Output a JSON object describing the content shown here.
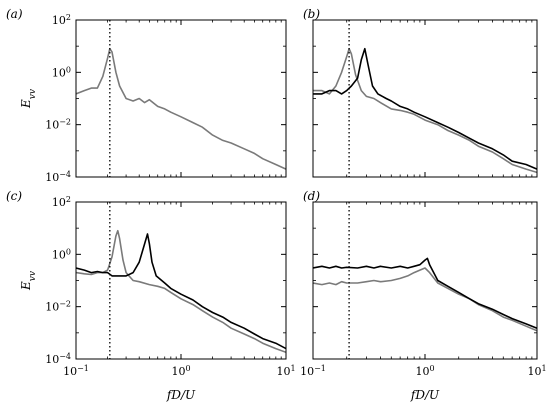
{
  "figure": {
    "xlabel": "fD/U",
    "ylabel": "E_vv",
    "colors": {
      "dark": "#000000",
      "gray": "#7a7a7a",
      "dotted": "#000000"
    }
  },
  "chart_data": [
    {
      "panel": "(a)",
      "type": "line",
      "x_scale": "log",
      "y_scale": "log",
      "xlim": [
        0.1,
        10
      ],
      "ylim": [
        0.0001,
        100
      ],
      "x_tick_labels_visible": false,
      "y_tick_labels_visible": true,
      "ylabel": "E_vv",
      "xlabel": "",
      "vline_x": 0.21,
      "series": [
        {
          "color": "gray",
          "points": [
            [
              0.1,
              0.15
            ],
            [
              0.12,
              0.2
            ],
            [
              0.14,
              0.25
            ],
            [
              0.16,
              0.25
            ],
            [
              0.18,
              0.7
            ],
            [
              0.2,
              3.5
            ],
            [
              0.21,
              8
            ],
            [
              0.22,
              6
            ],
            [
              0.24,
              1.0
            ],
            [
              0.26,
              0.3
            ],
            [
              0.3,
              0.1
            ],
            [
              0.35,
              0.08
            ],
            [
              0.4,
              0.1
            ],
            [
              0.45,
              0.07
            ],
            [
              0.5,
              0.09
            ],
            [
              0.6,
              0.05
            ],
            [
              0.7,
              0.04
            ],
            [
              0.8,
              0.03
            ],
            [
              1.0,
              0.02
            ],
            [
              1.3,
              0.012
            ],
            [
              1.6,
              0.008
            ],
            [
              2.0,
              0.004
            ],
            [
              2.5,
              0.0025
            ],
            [
              3.0,
              0.002
            ],
            [
              4.0,
              0.0012
            ],
            [
              5.0,
              0.0008
            ],
            [
              6.0,
              0.0005
            ],
            [
              8.0,
              0.0003
            ],
            [
              10.0,
              0.0002
            ]
          ]
        }
      ]
    },
    {
      "panel": "(b)",
      "type": "line",
      "x_scale": "log",
      "y_scale": "log",
      "xlim": [
        0.1,
        10
      ],
      "ylim": [
        0.0001,
        100
      ],
      "x_tick_labels_visible": false,
      "y_tick_labels_visible": false,
      "ylabel": "",
      "xlabel": "",
      "vline_x": 0.21,
      "series": [
        {
          "color": "gray",
          "points": [
            [
              0.1,
              0.2
            ],
            [
              0.12,
              0.2
            ],
            [
              0.14,
              0.15
            ],
            [
              0.16,
              0.3
            ],
            [
              0.18,
              1.0
            ],
            [
              0.2,
              4.0
            ],
            [
              0.21,
              8
            ],
            [
              0.22,
              5
            ],
            [
              0.24,
              0.8
            ],
            [
              0.27,
              0.2
            ],
            [
              0.3,
              0.12
            ],
            [
              0.35,
              0.1
            ],
            [
              0.4,
              0.07
            ],
            [
              0.5,
              0.04
            ],
            [
              0.6,
              0.035
            ],
            [
              0.7,
              0.03
            ],
            [
              0.8,
              0.025
            ],
            [
              1.0,
              0.015
            ],
            [
              1.3,
              0.01
            ],
            [
              1.6,
              0.006
            ],
            [
              2.0,
              0.004
            ],
            [
              2.5,
              0.0025
            ],
            [
              3.0,
              0.0015
            ],
            [
              4.0,
              0.0009
            ],
            [
              5.0,
              0.0005
            ],
            [
              6.0,
              0.0003
            ],
            [
              8.0,
              0.0002
            ],
            [
              10.0,
              0.00015
            ]
          ]
        },
        {
          "color": "dark",
          "points": [
            [
              0.1,
              0.15
            ],
            [
              0.12,
              0.15
            ],
            [
              0.14,
              0.2
            ],
            [
              0.16,
              0.2
            ],
            [
              0.18,
              0.15
            ],
            [
              0.2,
              0.2
            ],
            [
              0.22,
              0.3
            ],
            [
              0.25,
              0.6
            ],
            [
              0.27,
              3
            ],
            [
              0.29,
              8
            ],
            [
              0.31,
              2
            ],
            [
              0.34,
              0.3
            ],
            [
              0.38,
              0.15
            ],
            [
              0.45,
              0.1
            ],
            [
              0.5,
              0.08
            ],
            [
              0.6,
              0.05
            ],
            [
              0.7,
              0.04
            ],
            [
              0.8,
              0.03
            ],
            [
              1.0,
              0.02
            ],
            [
              1.3,
              0.012
            ],
            [
              1.6,
              0.008
            ],
            [
              2.0,
              0.005
            ],
            [
              2.5,
              0.003
            ],
            [
              3.0,
              0.002
            ],
            [
              4.0,
              0.0012
            ],
            [
              5.0,
              0.0007
            ],
            [
              6.0,
              0.0004
            ],
            [
              8.0,
              0.0003
            ],
            [
              10.0,
              0.0002
            ]
          ]
        }
      ]
    },
    {
      "panel": "(c)",
      "type": "line",
      "x_scale": "log",
      "y_scale": "log",
      "xlim": [
        0.1,
        10
      ],
      "ylim": [
        0.0001,
        100
      ],
      "x_tick_labels_visible": true,
      "y_tick_labels_visible": true,
      "ylabel": "E_vv",
      "xlabel": "fD/U",
      "vline_x": 0.21,
      "series": [
        {
          "color": "gray",
          "points": [
            [
              0.1,
              0.2
            ],
            [
              0.12,
              0.18
            ],
            [
              0.14,
              0.17
            ],
            [
              0.16,
              0.2
            ],
            [
              0.18,
              0.2
            ],
            [
              0.2,
              0.25
            ],
            [
              0.22,
              0.8
            ],
            [
              0.24,
              5
            ],
            [
              0.25,
              8
            ],
            [
              0.26,
              4
            ],
            [
              0.28,
              0.6
            ],
            [
              0.3,
              0.2
            ],
            [
              0.35,
              0.1
            ],
            [
              0.4,
              0.09
            ],
            [
              0.5,
              0.07
            ],
            [
              0.6,
              0.06
            ],
            [
              0.7,
              0.05
            ],
            [
              0.8,
              0.035
            ],
            [
              1.0,
              0.02
            ],
            [
              1.3,
              0.012
            ],
            [
              1.6,
              0.007
            ],
            [
              2.0,
              0.004
            ],
            [
              2.5,
              0.0025
            ],
            [
              3.0,
              0.0015
            ],
            [
              4.0,
              0.0009
            ],
            [
              5.0,
              0.0006
            ],
            [
              6.0,
              0.0004
            ],
            [
              8.0,
              0.00025
            ],
            [
              10.0,
              0.00018
            ]
          ]
        },
        {
          "color": "dark",
          "points": [
            [
              0.1,
              0.3
            ],
            [
              0.12,
              0.25
            ],
            [
              0.14,
              0.2
            ],
            [
              0.16,
              0.22
            ],
            [
              0.18,
              0.2
            ],
            [
              0.2,
              0.2
            ],
            [
              0.22,
              0.15
            ],
            [
              0.25,
              0.15
            ],
            [
              0.3,
              0.15
            ],
            [
              0.35,
              0.2
            ],
            [
              0.4,
              0.5
            ],
            [
              0.45,
              2.5
            ],
            [
              0.48,
              6
            ],
            [
              0.5,
              2.5
            ],
            [
              0.53,
              0.5
            ],
            [
              0.58,
              0.15
            ],
            [
              0.7,
              0.08
            ],
            [
              0.8,
              0.05
            ],
            [
              1.0,
              0.03
            ],
            [
              1.3,
              0.018
            ],
            [
              1.6,
              0.01
            ],
            [
              2.0,
              0.006
            ],
            [
              2.5,
              0.004
            ],
            [
              3.0,
              0.0025
            ],
            [
              4.0,
              0.0015
            ],
            [
              5.0,
              0.0009
            ],
            [
              6.0,
              0.0006
            ],
            [
              8.0,
              0.0004
            ],
            [
              10.0,
              0.00025
            ]
          ]
        }
      ]
    },
    {
      "panel": "(d)",
      "type": "line",
      "x_scale": "log",
      "y_scale": "log",
      "xlim": [
        0.1,
        10
      ],
      "ylim": [
        0.0001,
        100
      ],
      "x_tick_labels_visible": true,
      "y_tick_labels_visible": false,
      "ylabel": "",
      "xlabel": "fD/U",
      "vline_x": 0.21,
      "series": [
        {
          "color": "gray",
          "points": [
            [
              0.1,
              0.08
            ],
            [
              0.12,
              0.07
            ],
            [
              0.14,
              0.08
            ],
            [
              0.16,
              0.07
            ],
            [
              0.18,
              0.09
            ],
            [
              0.2,
              0.08
            ],
            [
              0.25,
              0.08
            ],
            [
              0.3,
              0.09
            ],
            [
              0.35,
              0.1
            ],
            [
              0.4,
              0.09
            ],
            [
              0.5,
              0.1
            ],
            [
              0.6,
              0.12
            ],
            [
              0.7,
              0.15
            ],
            [
              0.8,
              0.2
            ],
            [
              0.9,
              0.25
            ],
            [
              1.0,
              0.3
            ],
            [
              1.1,
              0.2
            ],
            [
              1.3,
              0.08
            ],
            [
              1.6,
              0.05
            ],
            [
              2.0,
              0.03
            ],
            [
              2.5,
              0.02
            ],
            [
              3.0,
              0.012
            ],
            [
              4.0,
              0.007
            ],
            [
              5.0,
              0.004
            ],
            [
              6.0,
              0.003
            ],
            [
              8.0,
              0.0018
            ],
            [
              10.0,
              0.0012
            ]
          ]
        },
        {
          "color": "dark",
          "points": [
            [
              0.1,
              0.3
            ],
            [
              0.12,
              0.35
            ],
            [
              0.14,
              0.3
            ],
            [
              0.16,
              0.35
            ],
            [
              0.18,
              0.3
            ],
            [
              0.2,
              0.32
            ],
            [
              0.25,
              0.3
            ],
            [
              0.3,
              0.35
            ],
            [
              0.35,
              0.3
            ],
            [
              0.4,
              0.35
            ],
            [
              0.5,
              0.3
            ],
            [
              0.6,
              0.35
            ],
            [
              0.7,
              0.3
            ],
            [
              0.8,
              0.35
            ],
            [
              0.9,
              0.4
            ],
            [
              1.0,
              0.6
            ],
            [
              1.05,
              0.7
            ],
            [
              1.1,
              0.4
            ],
            [
              1.3,
              0.1
            ],
            [
              1.6,
              0.06
            ],
            [
              2.0,
              0.035
            ],
            [
              2.5,
              0.02
            ],
            [
              3.0,
              0.013
            ],
            [
              4.0,
              0.008
            ],
            [
              5.0,
              0.005
            ],
            [
              6.0,
              0.0035
            ],
            [
              8.0,
              0.0022
            ],
            [
              10.0,
              0.0015
            ]
          ]
        }
      ]
    }
  ]
}
